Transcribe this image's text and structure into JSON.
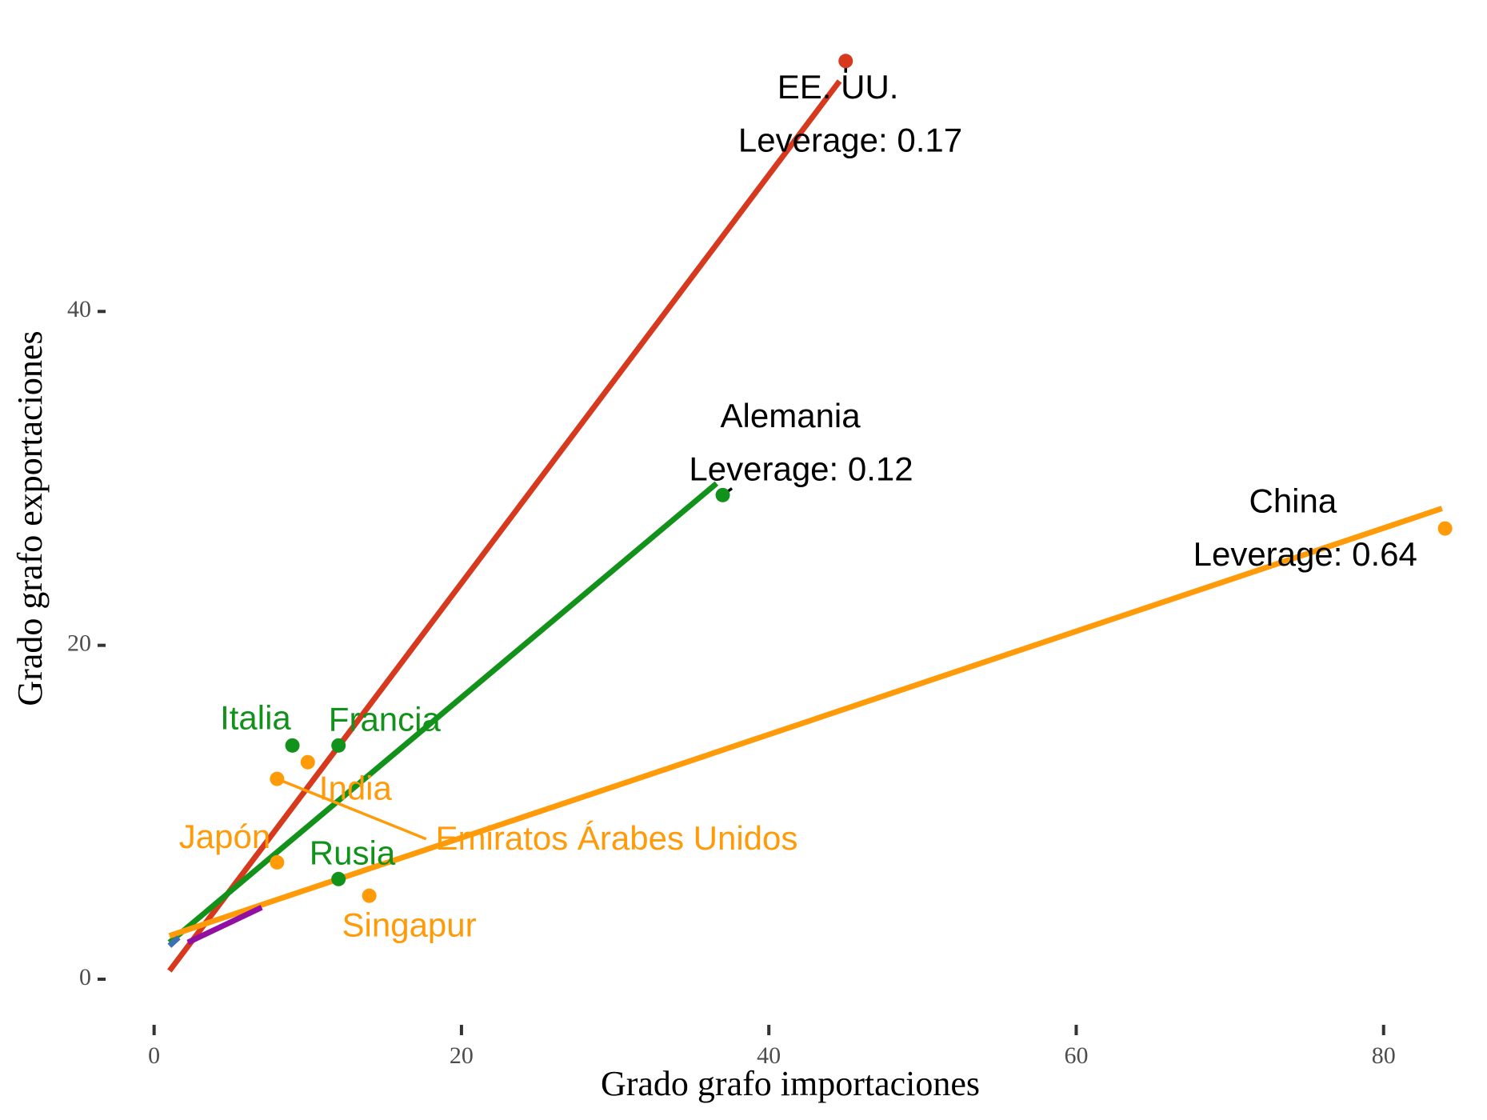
{
  "chart_data": {
    "type": "scatter",
    "title": "",
    "xlabel": "Grado grafo importaciones",
    "ylabel": "Grado grafo exportaciones",
    "xlim": [
      -3,
      86
    ],
    "ylim": [
      -2.3,
      56.5
    ],
    "grid": false,
    "x_ticks": [
      0,
      20,
      40,
      60,
      80
    ],
    "y_ticks": [
      0,
      20,
      40
    ],
    "colors": {
      "red": "#d6391d",
      "green": "#13921b",
      "orange": "#ff9a08",
      "blue": "#3f6fb0",
      "purple": "#920fa3",
      "black": "#000000"
    },
    "series": [
      {
        "color": "red",
        "points": [
          {
            "x": 45,
            "y": 55
          }
        ],
        "fit_line": {
          "x": [
            1,
            44.6
          ],
          "y": [
            0.5,
            53.8
          ]
        }
      },
      {
        "color": "green",
        "points": [
          {
            "x": 37,
            "y": 29
          },
          {
            "x": 9,
            "y": 14
          },
          {
            "x": 12,
            "y": 14
          },
          {
            "x": 12,
            "y": 6
          }
        ],
        "fit_line": {
          "x": [
            1,
            36.6
          ],
          "y": [
            2.2,
            29.7
          ]
        }
      },
      {
        "color": "orange",
        "points": [
          {
            "x": 84,
            "y": 27
          },
          {
            "x": 10,
            "y": 13
          },
          {
            "x": 8,
            "y": 12
          },
          {
            "x": 8,
            "y": 7
          },
          {
            "x": 14,
            "y": 5
          }
        ],
        "fit_line": {
          "x": [
            1,
            83.8
          ],
          "y": [
            2.6,
            28.2
          ]
        }
      },
      {
        "color": "blue",
        "points": [],
        "fit_line": {
          "x": [
            1,
            1.6
          ],
          "y": [
            2,
            2.5
          ]
        }
      },
      {
        "color": "purple",
        "points": [],
        "fit_line": {
          "x": [
            2.2,
            7
          ],
          "y": [
            2.2,
            4.3
          ]
        }
      }
    ],
    "labels": [
      {
        "text": "EE. UU.",
        "x": 44.5,
        "y": 53.3,
        "color": "black"
      },
      {
        "text": "Leverage: 0.17",
        "x": 45.3,
        "y": 50.1,
        "color": "black"
      },
      {
        "text": "Alemania",
        "x": 41.4,
        "y": 33.6,
        "color": "black"
      },
      {
        "text": "Leverage: 0.12",
        "x": 42.1,
        "y": 30.4,
        "color": "black"
      },
      {
        "text": "China",
        "x": 74.1,
        "y": 28.5,
        "color": "black"
      },
      {
        "text": "Leverage: 0.64",
        "x": 74.9,
        "y": 25.3,
        "color": "black"
      },
      {
        "text": "Italia",
        "x": 6.6,
        "y": 15.5,
        "color": "green"
      },
      {
        "text": "Francia",
        "x": 15,
        "y": 15.4,
        "color": "green"
      },
      {
        "text": "India",
        "x": 13.1,
        "y": 11.3,
        "color": "orange"
      },
      {
        "text": "Japón",
        "x": 4.6,
        "y": 8.4,
        "color": "orange"
      },
      {
        "text": "Rusia",
        "x": 12.9,
        "y": 7.4,
        "color": "green"
      },
      {
        "text": "Emiratos Árabes Unidos",
        "x": 30.1,
        "y": 8.3,
        "color": "orange"
      },
      {
        "text": "Singapur",
        "x": 16.6,
        "y": 3.1,
        "color": "orange"
      }
    ],
    "leader_lines": [
      {
        "x": [
          8,
          17.7
        ],
        "y": [
          12,
          8.4
        ],
        "color": "orange"
      },
      {
        "x": [
          45,
          45
        ],
        "y": [
          55,
          54.3
        ],
        "color": "black"
      },
      {
        "x": [
          37,
          37.6
        ],
        "y": [
          29,
          29.4
        ],
        "color": "black"
      },
      {
        "x": [
          84,
          83.6
        ],
        "y": [
          27,
          27
        ],
        "color": "black"
      }
    ]
  }
}
